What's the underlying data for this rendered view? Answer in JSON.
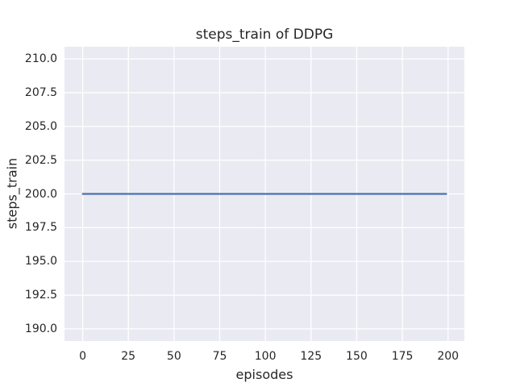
{
  "chart_data": {
    "type": "line",
    "title": "steps_train of DDPG",
    "xlabel": "episodes",
    "ylabel": "steps_train",
    "xlim": [
      -9.95,
      208.95
    ],
    "ylim": [
      189.1,
      210.9
    ],
    "grid": true,
    "legend": false,
    "plot_background_color": "#eaeaf2",
    "grid_color": "#ffffff",
    "text_color": "#262626",
    "x_ticks": {
      "values": [
        0,
        25,
        50,
        75,
        100,
        125,
        150,
        175,
        200
      ],
      "labels": [
        "0",
        "25",
        "50",
        "75",
        "100",
        "125",
        "150",
        "175",
        "200"
      ]
    },
    "y_ticks": {
      "values": [
        190,
        192.5,
        195,
        197.5,
        200,
        202.5,
        205,
        207.5,
        210
      ],
      "labels": [
        "190.0",
        "192.5",
        "195.0",
        "197.5",
        "200.0",
        "202.5",
        "205.0",
        "207.5",
        "210.0"
      ]
    },
    "series": [
      {
        "name": "steps_train",
        "color": "#4c72b0",
        "x": [
          0,
          199
        ],
        "y": [
          200,
          200
        ],
        "note": "constant value 200 across all episodes 0-199"
      }
    ]
  }
}
